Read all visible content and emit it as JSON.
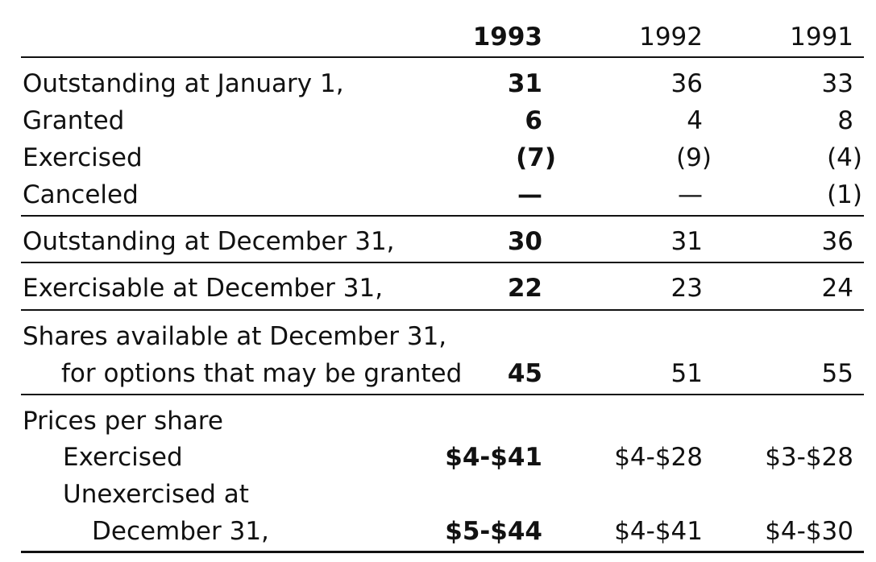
{
  "header": {
    "years": [
      "1993",
      "1992",
      "1991"
    ]
  },
  "rows": {
    "outstanding_jan": {
      "label": "Outstanding at January 1,",
      "v1993": "31",
      "v1992": "36",
      "v1991": "33"
    },
    "granted": {
      "label": "Granted",
      "v1993": "6",
      "v1992": "4",
      "v1991": "8"
    },
    "exercised": {
      "label": "Exercised",
      "v1993": "(7)",
      "v1992": "(9)",
      "v1991": "(4)"
    },
    "canceled": {
      "label": "Canceled",
      "v1993": "—",
      "v1992": "—",
      "v1991": "(1)"
    },
    "outstanding_dec": {
      "label": "Outstanding at December 31,",
      "v1993": "30",
      "v1992": "31",
      "v1991": "36"
    },
    "exercisable_dec": {
      "label": "Exercisable at December 31,",
      "v1993": "22",
      "v1992": "23",
      "v1991": "24"
    },
    "shares_available": {
      "label_line1": "Shares available at December 31,",
      "label_line2": "for options that may be granted",
      "v1993": "45",
      "v1992": "51",
      "v1991": "55"
    }
  },
  "prices": {
    "heading": "Prices per share",
    "exercised": {
      "label": "Exercised",
      "v1993": "$4-$41",
      "v1992": "$4-$28",
      "v1991": "$3-$28"
    },
    "unexercised": {
      "label_line1": "Unexercised at",
      "label_line2": "December 31,",
      "v1993": "$5-$44",
      "v1992": "$4-$41",
      "v1991": "$4-$30"
    }
  }
}
